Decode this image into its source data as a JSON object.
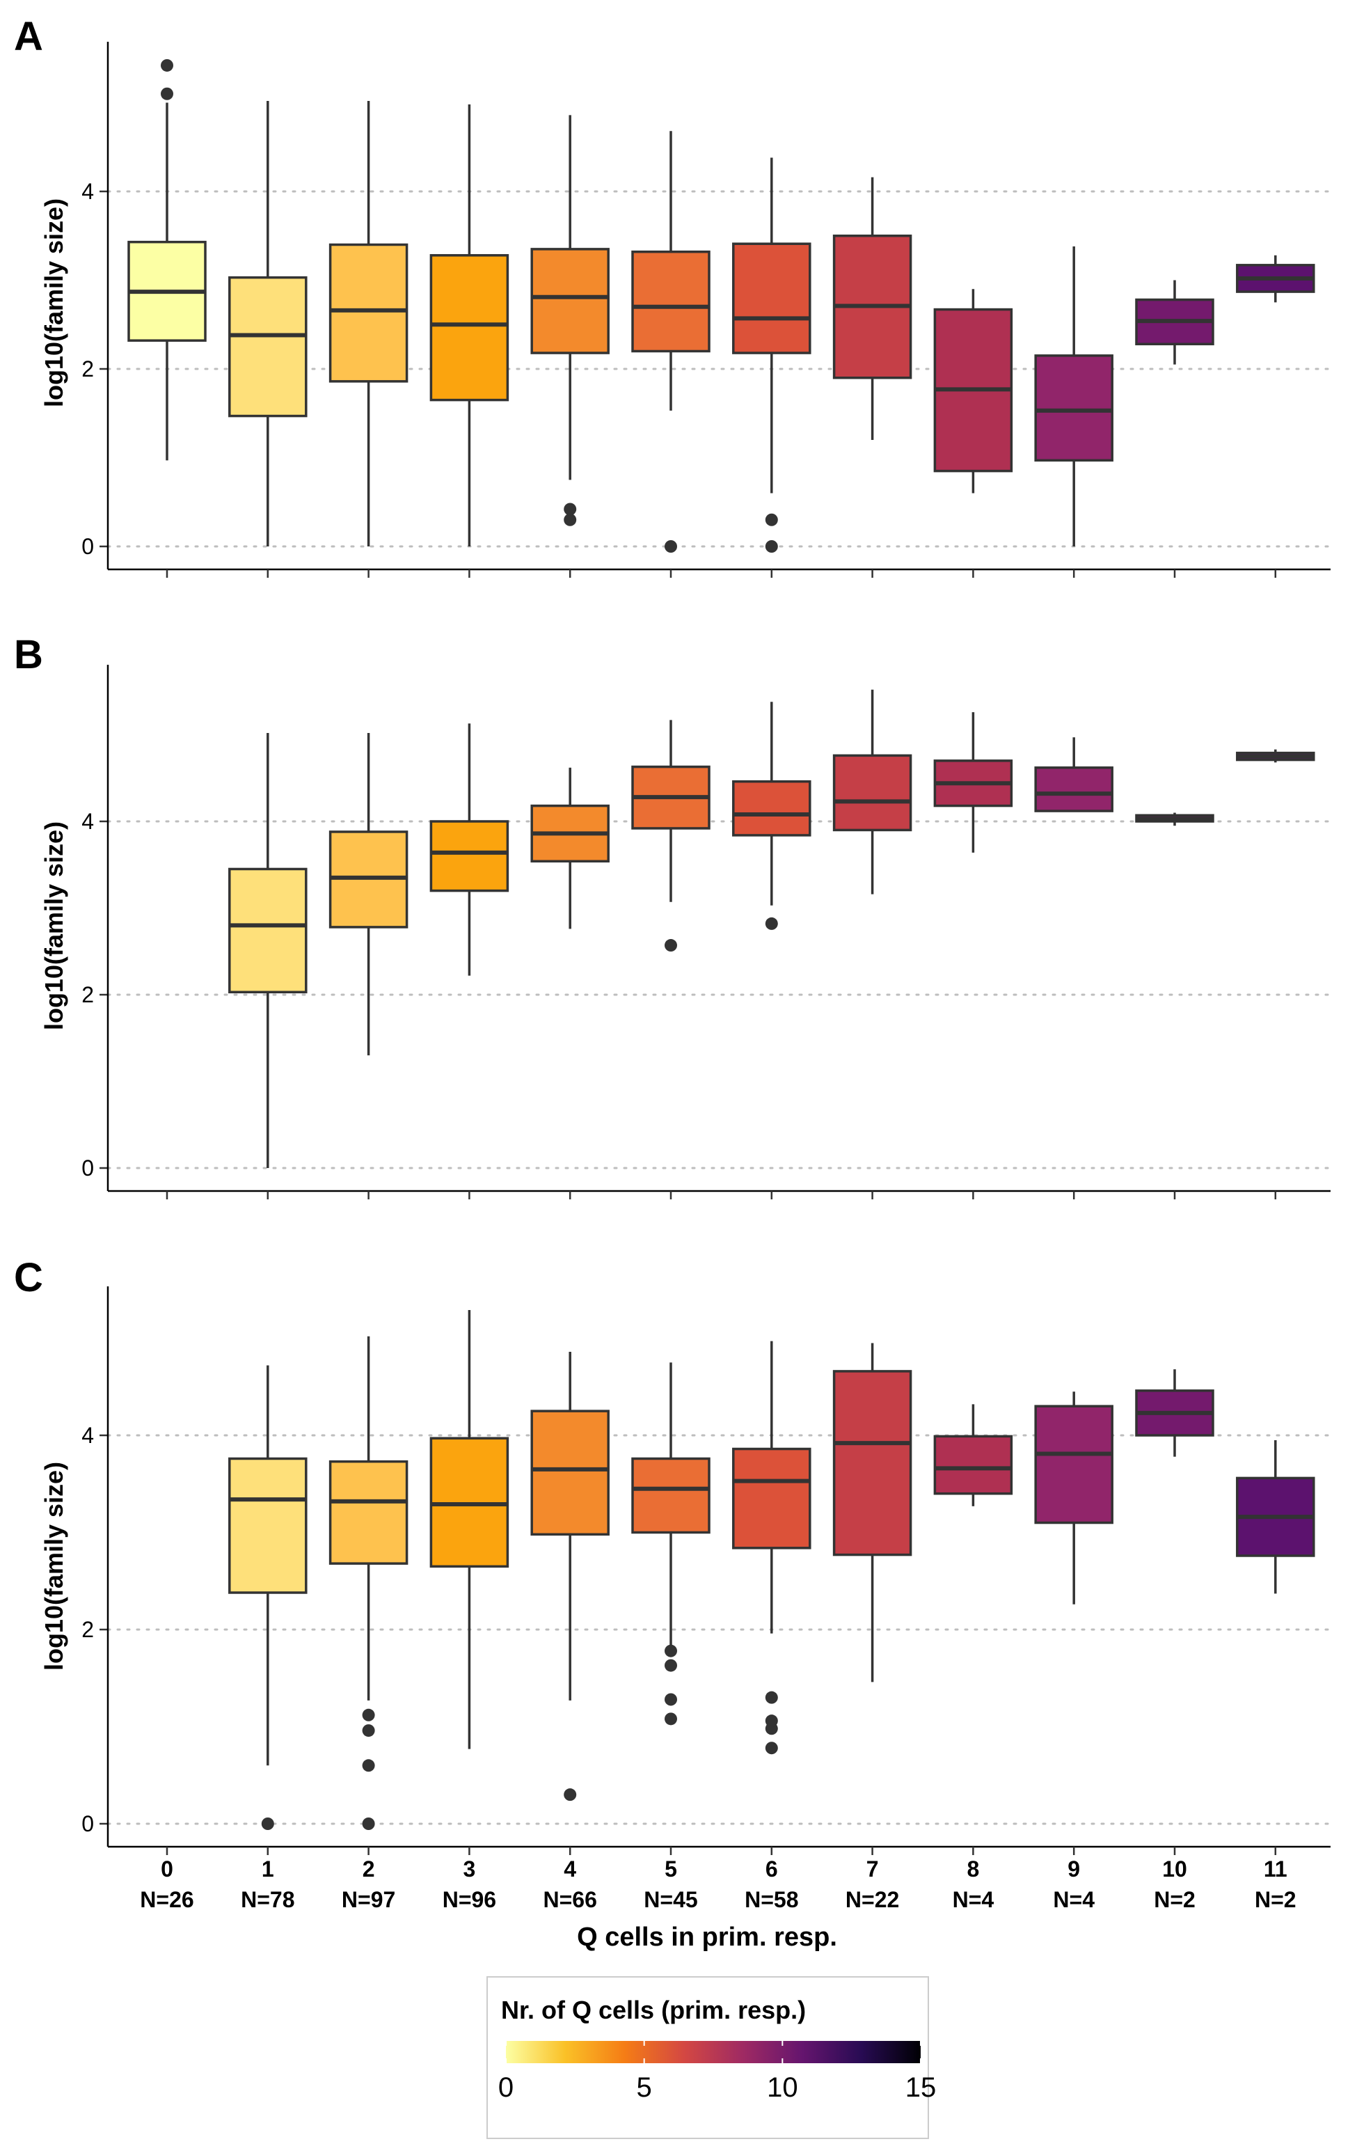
{
  "chart_data": [
    {
      "panel": "A",
      "type": "boxplot",
      "ylabel": "log10(family size)",
      "yticks": [
        0,
        2,
        4
      ],
      "ylim": [
        -0.25,
        5.7
      ],
      "grid": "horizontal dotted at y ticks",
      "boxes": [
        {
          "x": 0,
          "color": "#FCFFA4",
          "min": 0.97,
          "q1": 2.32,
          "median": 2.87,
          "q3": 3.43,
          "max": 5.0,
          "outliers": [
            5.1,
            5.42
          ]
        },
        {
          "x": 1,
          "color": "#FEE07A",
          "min": 0.0,
          "q1": 1.47,
          "median": 2.38,
          "q3": 3.03,
          "max": 5.02,
          "outliers": []
        },
        {
          "x": 2,
          "color": "#FEC24E",
          "min": 0.0,
          "q1": 1.86,
          "median": 2.66,
          "q3": 3.4,
          "max": 5.02,
          "outliers": []
        },
        {
          "x": 3,
          "color": "#FBA40E",
          "min": 0.0,
          "q1": 1.65,
          "median": 2.5,
          "q3": 3.28,
          "max": 4.98,
          "outliers": []
        },
        {
          "x": 4,
          "color": "#F38A2C",
          "min": 0.75,
          "q1": 2.18,
          "median": 2.81,
          "q3": 3.35,
          "max": 4.86,
          "outliers": [
            0.3,
            0.42
          ]
        },
        {
          "x": 5,
          "color": "#EA6E34",
          "min": 1.53,
          "q1": 2.2,
          "median": 2.7,
          "q3": 3.32,
          "max": 4.68,
          "outliers": [
            0.0
          ]
        },
        {
          "x": 6,
          "color": "#DC5239",
          "min": 0.6,
          "q1": 2.18,
          "median": 2.57,
          "q3": 3.41,
          "max": 4.38,
          "outliers": [
            0.0,
            0.3
          ]
        },
        {
          "x": 7,
          "color": "#C53F47",
          "min": 1.2,
          "q1": 1.9,
          "median": 2.71,
          "q3": 3.5,
          "max": 4.16,
          "outliers": []
        },
        {
          "x": 8,
          "color": "#AF3052",
          "min": 0.6,
          "q1": 0.85,
          "median": 1.77,
          "q3": 2.67,
          "max": 2.9,
          "outliers": []
        },
        {
          "x": 9,
          "color": "#91256A",
          "min": 0.0,
          "q1": 0.97,
          "median": 1.53,
          "q3": 2.15,
          "max": 3.38,
          "outliers": []
        },
        {
          "x": 10,
          "color": "#741A6D",
          "min": 2.05,
          "q1": 2.28,
          "median": 2.54,
          "q3": 2.78,
          "max": 3.0,
          "outliers": []
        },
        {
          "x": 11,
          "color": "#5C126E",
          "min": 2.75,
          "q1": 2.87,
          "median": 3.02,
          "q3": 3.17,
          "max": 3.28,
          "outliers": []
        }
      ]
    },
    {
      "panel": "B",
      "type": "boxplot",
      "ylabel": "log10(family size)",
      "yticks": [
        0,
        2,
        4
      ],
      "ylim": [
        -0.25,
        5.7
      ],
      "grid": "horizontal dotted at y ticks",
      "boxes": [
        {
          "x": 1,
          "color": "#FEE07A",
          "min": 0.0,
          "q1": 2.03,
          "median": 2.8,
          "q3": 3.45,
          "max": 5.02,
          "outliers": []
        },
        {
          "x": 2,
          "color": "#FEC24E",
          "min": 1.3,
          "q1": 2.78,
          "median": 3.35,
          "q3": 3.88,
          "max": 5.02,
          "outliers": []
        },
        {
          "x": 3,
          "color": "#FBA40E",
          "min": 2.22,
          "q1": 3.2,
          "median": 3.64,
          "q3": 4.0,
          "max": 5.13,
          "outliers": []
        },
        {
          "x": 4,
          "color": "#F38A2C",
          "min": 2.76,
          "q1": 3.54,
          "median": 3.86,
          "q3": 4.18,
          "max": 4.62,
          "outliers": []
        },
        {
          "x": 5,
          "color": "#EA6E34",
          "min": 3.07,
          "q1": 3.92,
          "median": 4.28,
          "q3": 4.63,
          "max": 5.17,
          "outliers": [
            2.57
          ]
        },
        {
          "x": 6,
          "color": "#DC5239",
          "min": 3.03,
          "q1": 3.84,
          "median": 4.08,
          "q3": 4.46,
          "max": 5.38,
          "outliers": [
            2.82
          ]
        },
        {
          "x": 7,
          "color": "#C53F47",
          "min": 3.16,
          "q1": 3.9,
          "median": 4.23,
          "q3": 4.76,
          "max": 5.52,
          "outliers": []
        },
        {
          "x": 8,
          "color": "#AF3052",
          "min": 3.64,
          "q1": 4.18,
          "median": 4.44,
          "q3": 4.7,
          "max": 5.26,
          "outliers": []
        },
        {
          "x": 9,
          "color": "#91256A",
          "min": 4.12,
          "q1": 4.12,
          "median": 4.32,
          "q3": 4.62,
          "max": 4.97,
          "outliers": []
        },
        {
          "x": 10,
          "color": "#741A6D",
          "min": 3.95,
          "q1": 4.0,
          "median": 4.03,
          "q3": 4.07,
          "max": 4.1,
          "outliers": []
        },
        {
          "x": 11,
          "color": "#5C126E",
          "min": 4.68,
          "q1": 4.71,
          "median": 4.75,
          "q3": 4.79,
          "max": 4.83,
          "outliers": []
        }
      ]
    },
    {
      "panel": "C",
      "type": "boxplot",
      "ylabel": "log10(family size)",
      "yticks": [
        0,
        2,
        4
      ],
      "ylim": [
        -0.25,
        5.7
      ],
      "grid": "horizontal dotted at y ticks",
      "xlabel": "Q cells in prim. resp.",
      "xcategories": [
        "0",
        "1",
        "2",
        "3",
        "4",
        "5",
        "6",
        "7",
        "8",
        "9",
        "10",
        "11"
      ],
      "xcounts": [
        "N=26",
        "N=78",
        "N=97",
        "N=96",
        "N=66",
        "N=45",
        "N=58",
        "N=22",
        "N=4",
        "N=4",
        "N=2",
        "N=2"
      ],
      "boxes": [
        {
          "x": 1,
          "color": "#FEE07A",
          "min": 0.6,
          "q1": 2.38,
          "median": 3.34,
          "q3": 3.76,
          "max": 4.72,
          "outliers": [
            0.0
          ]
        },
        {
          "x": 2,
          "color": "#FEC24E",
          "min": 1.27,
          "q1": 2.68,
          "median": 3.32,
          "q3": 3.73,
          "max": 5.02,
          "outliers": [
            0.0,
            0.6,
            0.96,
            1.12
          ]
        },
        {
          "x": 3,
          "color": "#FBA40E",
          "min": 0.77,
          "q1": 2.65,
          "median": 3.29,
          "q3": 3.97,
          "max": 5.29,
          "outliers": []
        },
        {
          "x": 4,
          "color": "#F38A2C",
          "min": 1.27,
          "q1": 2.98,
          "median": 3.65,
          "q3": 4.25,
          "max": 4.86,
          "outliers": [
            0.3
          ]
        },
        {
          "x": 5,
          "color": "#EA6E34",
          "min": 1.76,
          "q1": 3.0,
          "median": 3.45,
          "q3": 3.76,
          "max": 4.75,
          "outliers": [
            1.08,
            1.28,
            1.63,
            1.78
          ]
        },
        {
          "x": 6,
          "color": "#DC5239",
          "min": 1.96,
          "q1": 2.84,
          "median": 3.53,
          "q3": 3.86,
          "max": 4.97,
          "outliers": [
            0.78,
            0.98,
            1.06,
            1.3
          ]
        },
        {
          "x": 7,
          "color": "#C53F47",
          "min": 1.46,
          "q1": 2.77,
          "median": 3.92,
          "q3": 4.66,
          "max": 4.95,
          "outliers": []
        },
        {
          "x": 8,
          "color": "#AF3052",
          "min": 3.27,
          "q1": 3.4,
          "median": 3.66,
          "q3": 3.99,
          "max": 4.32,
          "outliers": []
        },
        {
          "x": 9,
          "color": "#91256A",
          "min": 2.26,
          "q1": 3.1,
          "median": 3.81,
          "q3": 4.3,
          "max": 4.45,
          "outliers": []
        },
        {
          "x": 10,
          "color": "#741A6D",
          "min": 3.78,
          "q1": 4.0,
          "median": 4.23,
          "q3": 4.46,
          "max": 4.68,
          "outliers": []
        },
        {
          "x": 11,
          "color": "#5C126E",
          "min": 2.37,
          "q1": 2.76,
          "median": 3.16,
          "q3": 3.56,
          "max": 3.95,
          "outliers": []
        }
      ]
    }
  ],
  "legend": {
    "title": "Nr. of Q cells (prim. resp.)",
    "ticks": [
      "0",
      "5",
      "10",
      "15"
    ],
    "range": [
      0,
      15
    ],
    "colormap": "inferno (reversed)",
    "gradient": [
      "#FCFFA4",
      "#FAC127",
      "#F57D15",
      "#D44842",
      "#9F2A63",
      "#65156E",
      "#280B53",
      "#000004"
    ]
  },
  "colors": {
    "grid": "#bdbdbd",
    "box_outline": "#333333",
    "outlier": "#333333"
  }
}
